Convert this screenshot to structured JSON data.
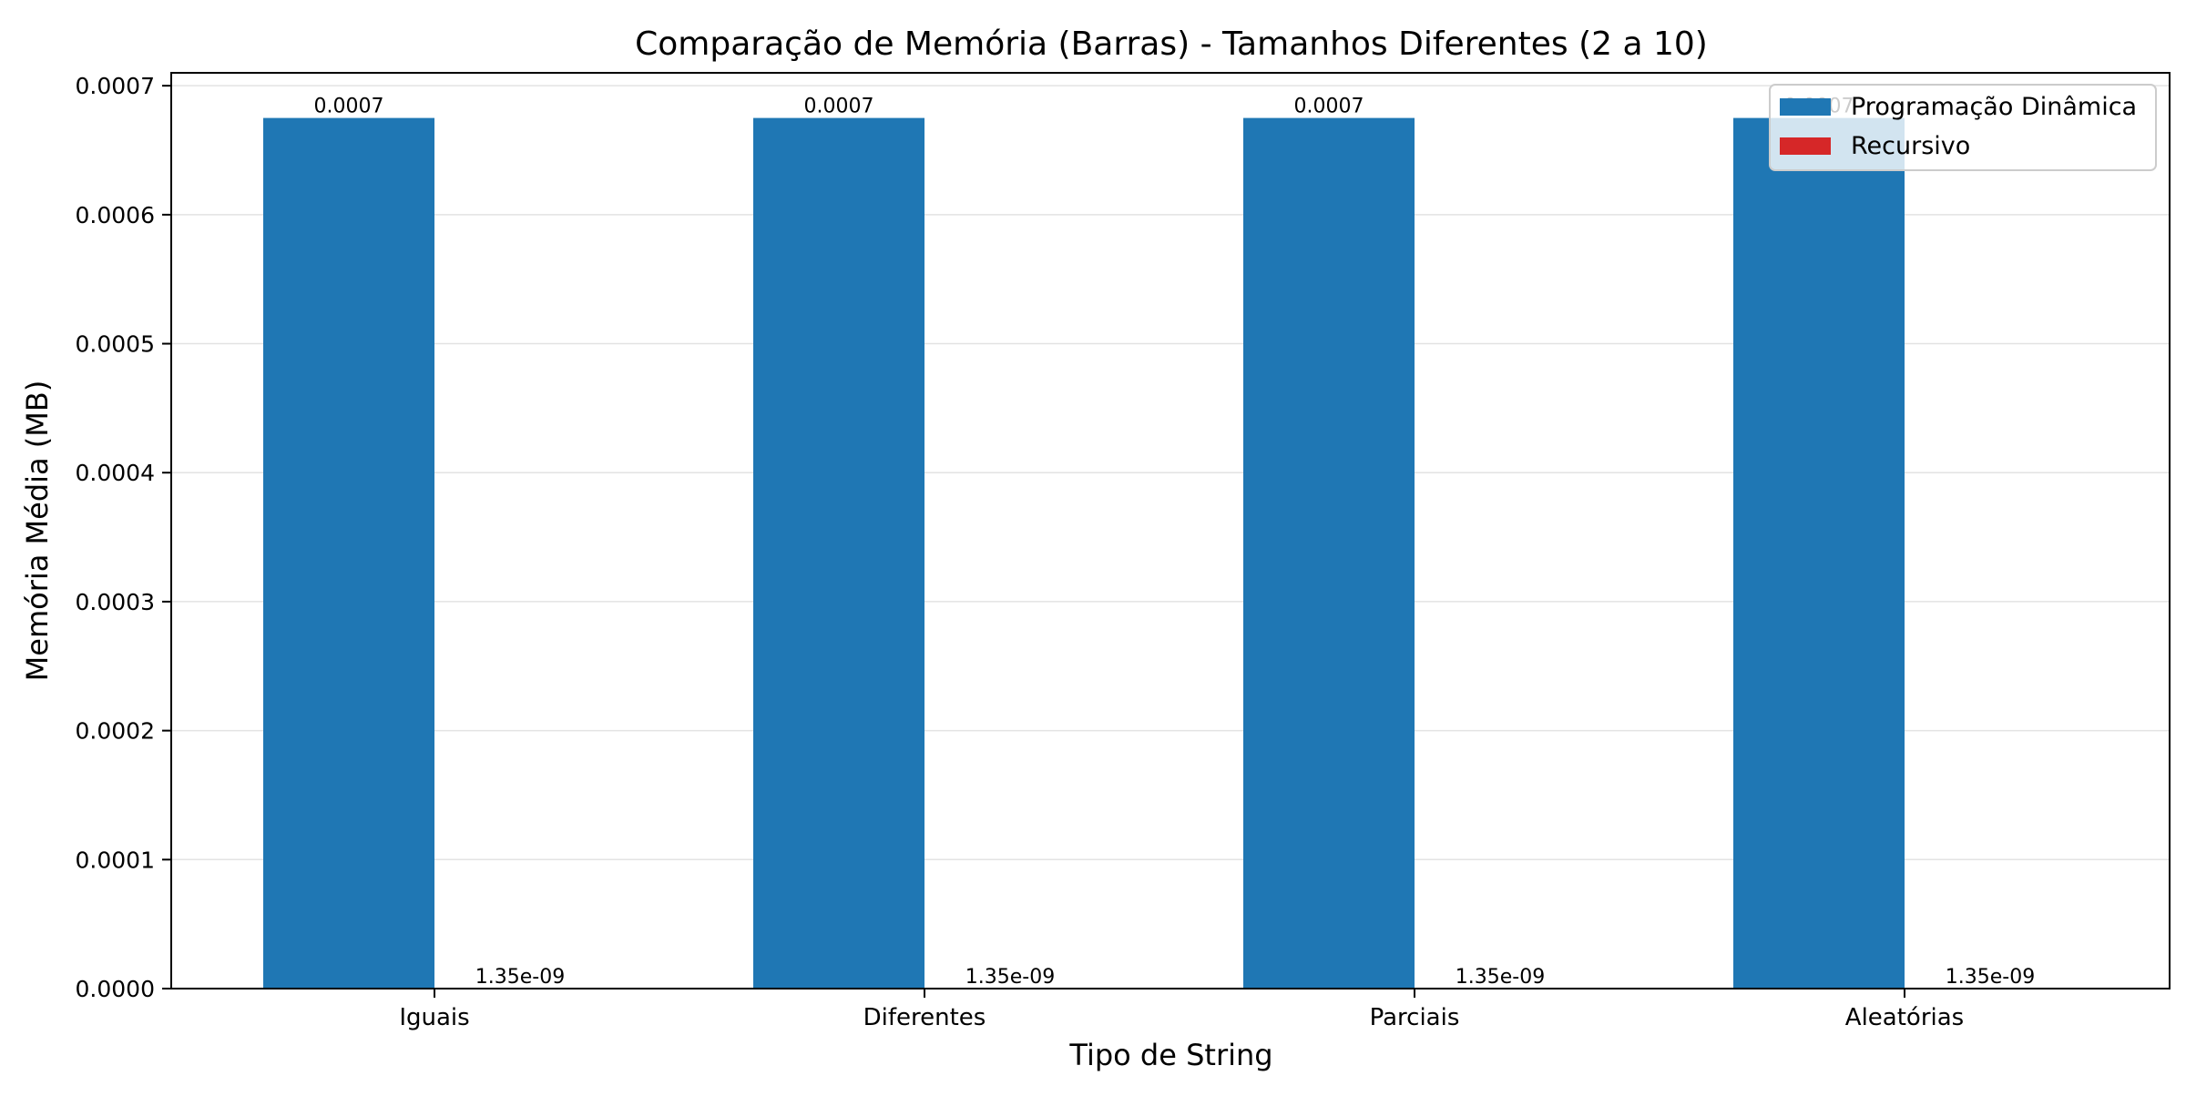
{
  "chart_data": {
    "type": "bar",
    "title": "Comparação de Memória (Barras) - Tamanhos Diferentes (2 a 10)",
    "xlabel": "Tipo de String",
    "ylabel": "Memória Média (MB)",
    "categories": [
      "Iguais",
      "Diferentes",
      "Parciais",
      "Aleatórias"
    ],
    "series": [
      {
        "name": "Programação Dinâmica",
        "color": "#1f77b4",
        "values": [
          0.000675,
          0.000675,
          0.000675,
          0.000675
        ],
        "labels": [
          "0.0007",
          "0.0007",
          "0.0007",
          "0.0007"
        ]
      },
      {
        "name": "Recursivo",
        "color": "#d62728",
        "values": [
          1.35e-09,
          1.35e-09,
          1.35e-09,
          1.35e-09
        ],
        "labels": [
          "1.35e-09",
          "1.35e-09",
          "1.35e-09",
          "1.35e-09"
        ]
      }
    ],
    "ylim": [
      0,
      0.00071
    ],
    "yticks": [
      0,
      0.0001,
      0.0002,
      0.0003,
      0.0004,
      0.0005,
      0.0006,
      0.0007
    ],
    "ytick_labels": [
      "0.0000",
      "0.0001",
      "0.0002",
      "0.0003",
      "0.0004",
      "0.0005",
      "0.0006",
      "0.0007"
    ],
    "grid": "y",
    "legend": "top-right"
  }
}
